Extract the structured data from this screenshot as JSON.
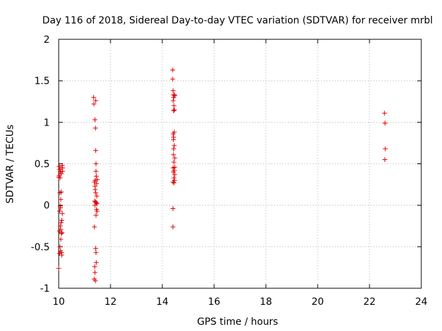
{
  "chart_data": {
    "type": "scatter",
    "title": "Day 116 of 2018, Sidereal Day-to-day VTEC variation (SDTVAR) for receiver mrbl",
    "xlabel": "GPS time / hours",
    "ylabel": "SDTVAR / TECUs",
    "xlim": [
      10,
      24
    ],
    "ylim": [
      -1,
      2
    ],
    "grid": true,
    "marker": "+",
    "color": "#e00000",
    "xticks": [
      {
        "value": 10,
        "label": "10"
      },
      {
        "value": 12,
        "label": "12"
      },
      {
        "value": 14,
        "label": "14"
      },
      {
        "value": 16,
        "label": "16"
      },
      {
        "value": 18,
        "label": "18"
      },
      {
        "value": 20,
        "label": "20"
      },
      {
        "value": 22,
        "label": "22"
      },
      {
        "value": 24,
        "label": "24"
      }
    ],
    "yticks": [
      {
        "value": -1,
        "label": "-1"
      },
      {
        "value": -0.5,
        "label": "-0.5"
      },
      {
        "value": 0,
        "label": "0"
      },
      {
        "value": 0.5,
        "label": "0.5"
      },
      {
        "value": 1,
        "label": "1"
      },
      {
        "value": 1.5,
        "label": "1.5"
      },
      {
        "value": 2,
        "label": "2"
      }
    ],
    "series": [
      {
        "name": "SDTVAR",
        "points": [
          [
            10.0,
            -0.76
          ],
          [
            10.0,
            0.34
          ],
          [
            10.02,
            0.47
          ],
          [
            10.02,
            0.36
          ],
          [
            10.03,
            -0.31
          ],
          [
            10.03,
            -0.58
          ],
          [
            10.04,
            -0.07
          ],
          [
            10.04,
            0.43
          ],
          [
            10.05,
            -0.5
          ],
          [
            10.05,
            0.33
          ],
          [
            10.05,
            0.15
          ],
          [
            10.06,
            -0.25
          ],
          [
            10.06,
            0.4
          ],
          [
            10.07,
            -0.03
          ],
          [
            10.07,
            -0.55
          ],
          [
            10.08,
            -0.41
          ],
          [
            10.08,
            0.07
          ],
          [
            10.09,
            0.45
          ],
          [
            10.09,
            -0.21
          ],
          [
            10.1,
            -0.34
          ],
          [
            10.1,
            0.38
          ],
          [
            10.1,
            0.16
          ],
          [
            10.11,
            -0.57
          ],
          [
            10.12,
            -0.18
          ],
          [
            10.12,
            -0.6
          ],
          [
            10.13,
            -0.33
          ],
          [
            10.14,
            0.48
          ],
          [
            10.14,
            -0.1
          ],
          [
            10.15,
            0.45
          ],
          [
            10.15,
            0.41
          ],
          [
            10.06,
            -0.01
          ],
          [
            10.08,
            -0.29
          ],
          [
            11.35,
            1.3
          ],
          [
            11.36,
            1.22
          ],
          [
            11.37,
            -0.89
          ],
          [
            11.38,
            -0.26
          ],
          [
            11.38,
            0.28
          ],
          [
            11.39,
            0.05
          ],
          [
            11.39,
            -0.74
          ],
          [
            11.4,
            1.03
          ],
          [
            11.4,
            0.23
          ],
          [
            11.4,
            -0.81
          ],
          [
            11.4,
            0.0
          ],
          [
            11.41,
            0.19
          ],
          [
            11.41,
            0.3
          ],
          [
            11.42,
            0.93
          ],
          [
            11.42,
            -0.91
          ],
          [
            11.42,
            0.04
          ],
          [
            11.43,
            1.26
          ],
          [
            11.43,
            -0.52
          ],
          [
            11.43,
            0.66
          ],
          [
            11.43,
            0.15
          ],
          [
            11.44,
            0.5
          ],
          [
            11.44,
            0.41
          ],
          [
            11.44,
            -0.57
          ],
          [
            11.44,
            -0.12
          ],
          [
            11.45,
            0.03
          ],
          [
            11.45,
            -0.69
          ],
          [
            11.45,
            0.35
          ],
          [
            11.46,
            -0.05
          ],
          [
            11.46,
            0.26
          ],
          [
            11.47,
            0.11
          ],
          [
            11.48,
            0.02
          ],
          [
            11.48,
            -0.07
          ],
          [
            11.49,
            0.31
          ],
          [
            14.4,
            1.63
          ],
          [
            14.4,
            1.52
          ],
          [
            14.41,
            -0.26
          ],
          [
            14.41,
            -0.04
          ],
          [
            14.42,
            0.28
          ],
          [
            14.42,
            0.45
          ],
          [
            14.42,
            1.38
          ],
          [
            14.42,
            0.86
          ],
          [
            14.42,
            1.26
          ],
          [
            14.43,
            1.33
          ],
          [
            14.43,
            0.61
          ],
          [
            14.43,
            0.79
          ],
          [
            14.43,
            0.4
          ],
          [
            14.44,
            1.14
          ],
          [
            14.44,
            0.68
          ],
          [
            14.44,
            0.82
          ],
          [
            14.44,
            1.3
          ],
          [
            14.45,
            0.33
          ],
          [
            14.45,
            1.2
          ],
          [
            14.45,
            0.52
          ],
          [
            14.45,
            0.27
          ],
          [
            14.46,
            0.72
          ],
          [
            14.46,
            0.42
          ],
          [
            14.46,
            0.88
          ],
          [
            14.47,
            1.33
          ],
          [
            14.47,
            0.3
          ],
          [
            14.47,
            1.15
          ],
          [
            14.48,
            0.46
          ],
          [
            14.48,
            0.37
          ],
          [
            14.48,
            0.57
          ],
          [
            14.48,
            1.32
          ],
          [
            22.58,
            1.11
          ],
          [
            22.6,
            0.99
          ],
          [
            22.61,
            0.68
          ],
          [
            22.59,
            0.55
          ]
        ]
      }
    ]
  }
}
